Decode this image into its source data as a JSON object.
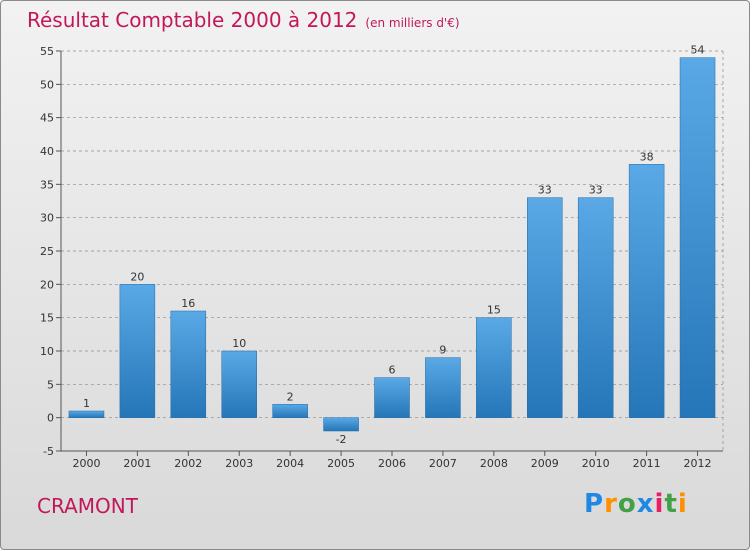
{
  "header": {
    "title": "Résultat Comptable 2000 à 2012",
    "unit": "(en milliers d'€)"
  },
  "place": "CRAMONT",
  "logo": {
    "text": "Proxiti",
    "letters": [
      "P",
      "r",
      "o",
      "x",
      "i",
      "t",
      "i"
    ],
    "letter_colors": [
      "#1e88e5",
      "#ff8f00",
      "#43a047",
      "#1e88e5",
      "#e91e63",
      "#43a047",
      "#ff8f00"
    ]
  },
  "colors": {
    "title": "#c2185b",
    "bar_light": "#5aa9e6",
    "bar_dark": "#2576b8",
    "grid": "#8a8a8a"
  },
  "chart_data": {
    "type": "bar",
    "title": "Résultat Comptable 2000 à 2012",
    "categories": [
      "2000",
      "2001",
      "2002",
      "2003",
      "2004",
      "2005",
      "2006",
      "2007",
      "2008",
      "2009",
      "2010",
      "2011",
      "2012"
    ],
    "values": [
      1,
      20,
      16,
      10,
      2,
      -2,
      6,
      9,
      15,
      33,
      33,
      38,
      54
    ],
    "data_labels": [
      "1",
      "20",
      "16",
      "10",
      "2",
      "-2",
      "6",
      "9",
      "15",
      "33",
      "33",
      "38",
      "54"
    ],
    "ylim": [
      -5,
      55
    ],
    "yticks": [
      -5,
      0,
      5,
      10,
      15,
      20,
      25,
      30,
      35,
      40,
      45,
      50,
      55
    ],
    "ytick_labels": [
      "-5",
      "0",
      "5",
      "10",
      "15",
      "20",
      "25",
      "30",
      "35",
      "40",
      "45",
      "50",
      "55"
    ],
    "grid": "horizontal dashed",
    "legend": "none"
  }
}
